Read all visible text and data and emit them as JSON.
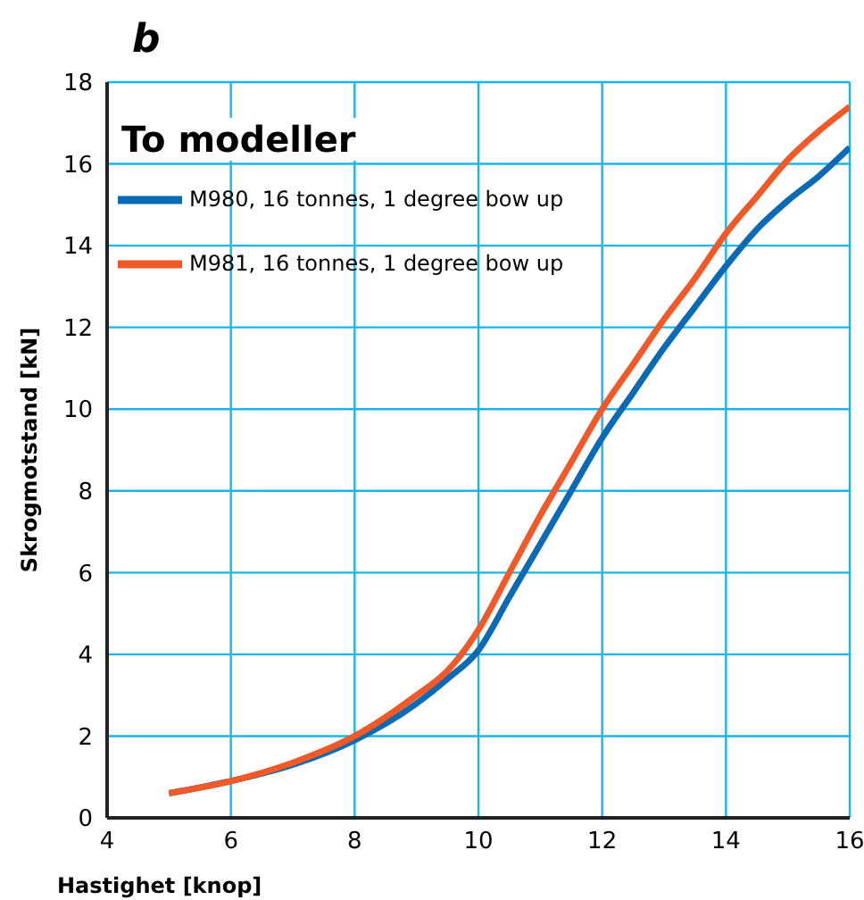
{
  "chart_data": {
    "type": "line",
    "title": "b",
    "xlabel": "Hastighet [knop]",
    "ylabel": "Skrogmotstand [kN]",
    "legend_title": "To modeller",
    "x": [
      5,
      6,
      7,
      8,
      9,
      9.5,
      10,
      10.5,
      11,
      11.5,
      12,
      12.5,
      13,
      13.5,
      14,
      14.5,
      15,
      15.5,
      16
    ],
    "series": [
      {
        "name": "M980, 16 tonnes, 1 degree bow up",
        "color": "#0a6ab4",
        "values": [
          0.6,
          0.9,
          1.3,
          1.9,
          2.8,
          3.4,
          4.1,
          5.4,
          6.7,
          8.0,
          9.3,
          10.4,
          11.5,
          12.5,
          13.5,
          14.4,
          15.1,
          15.7,
          16.4
        ]
      },
      {
        "name": "M981, 16 tonnes, 1 degree bow up",
        "color": "#f05a28",
        "values": [
          0.6,
          0.9,
          1.35,
          2.0,
          3.0,
          3.6,
          4.6,
          6.0,
          7.4,
          8.7,
          10.0,
          11.1,
          12.2,
          13.2,
          14.3,
          15.2,
          16.1,
          16.8,
          17.4
        ]
      }
    ],
    "xlim": [
      4,
      16
    ],
    "xticks": [
      4,
      6,
      8,
      10,
      12,
      14,
      16
    ],
    "ylim": [
      0,
      18
    ],
    "yticks": [
      0,
      2,
      4,
      6,
      8,
      10,
      12,
      14,
      16,
      18
    ],
    "grid": true,
    "legend": "top left",
    "marker": "none",
    "line_style": "solid"
  }
}
